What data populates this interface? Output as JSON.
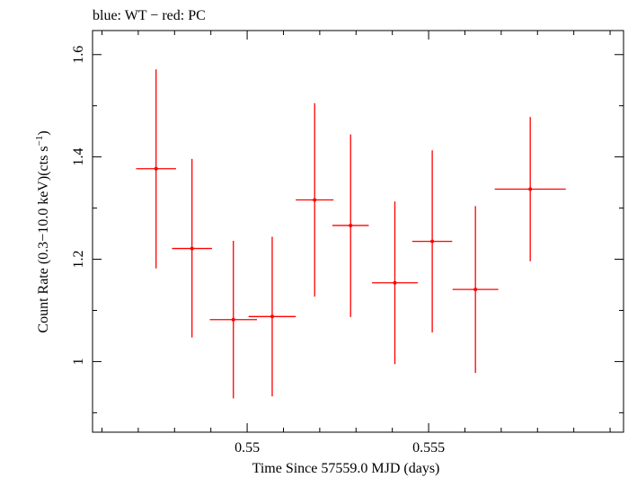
{
  "chart_data": {
    "type": "scatter",
    "title": "blue: WT − red: PC",
    "xlabel": "Time Since 57559.0 MJD (days)",
    "ylabel_main": "Count Rate (0.3−10.0 keV)(cts s",
    "ylabel_sup": "−1",
    "ylabel_close": ")",
    "xlim": [
      0.54574,
      0.56037
    ],
    "ylim": [
      0.862,
      1.647
    ],
    "x_ticks": [
      0.55,
      0.555
    ],
    "x_tick_labels": [
      "0.55",
      "0.555"
    ],
    "y_ticks": [
      1.0,
      1.2,
      1.4,
      1.6
    ],
    "y_tick_labels": [
      "1",
      "1.2",
      "1.4",
      "1.6"
    ],
    "series": [
      {
        "color": "#ff0000",
        "points": [
          {
            "x": 0.54749,
            "y": 1.377,
            "xerr": 0.00055,
            "ylo": 1.182,
            "yhi": 1.571
          },
          {
            "x": 0.54848,
            "y": 1.221,
            "xerr": 0.00055,
            "ylo": 1.047,
            "yhi": 1.396
          },
          {
            "x": 0.54962,
            "y": 1.082,
            "xerr": 0.00065,
            "ylo": 0.928,
            "yhi": 1.236
          },
          {
            "x": 0.55069,
            "y": 1.088,
            "xerr": 0.00065,
            "ylo": 0.932,
            "yhi": 1.244
          },
          {
            "x": 0.55186,
            "y": 1.316,
            "xerr": 0.00052,
            "ylo": 1.127,
            "yhi": 1.505
          },
          {
            "x": 0.55285,
            "y": 1.266,
            "xerr": 0.0005,
            "ylo": 1.087,
            "yhi": 1.444
          },
          {
            "x": 0.55407,
            "y": 1.154,
            "xerr": 0.00063,
            "ylo": 0.995,
            "yhi": 1.313
          },
          {
            "x": 0.5551,
            "y": 1.235,
            "xerr": 0.00055,
            "ylo": 1.057,
            "yhi": 1.413
          },
          {
            "x": 0.55629,
            "y": 1.141,
            "xerr": 0.00063,
            "ylo": 0.978,
            "yhi": 1.304
          },
          {
            "x": 0.5578,
            "y": 1.337,
            "xerr": 0.00098,
            "ylo": 1.196,
            "yhi": 1.478
          }
        ]
      }
    ]
  }
}
